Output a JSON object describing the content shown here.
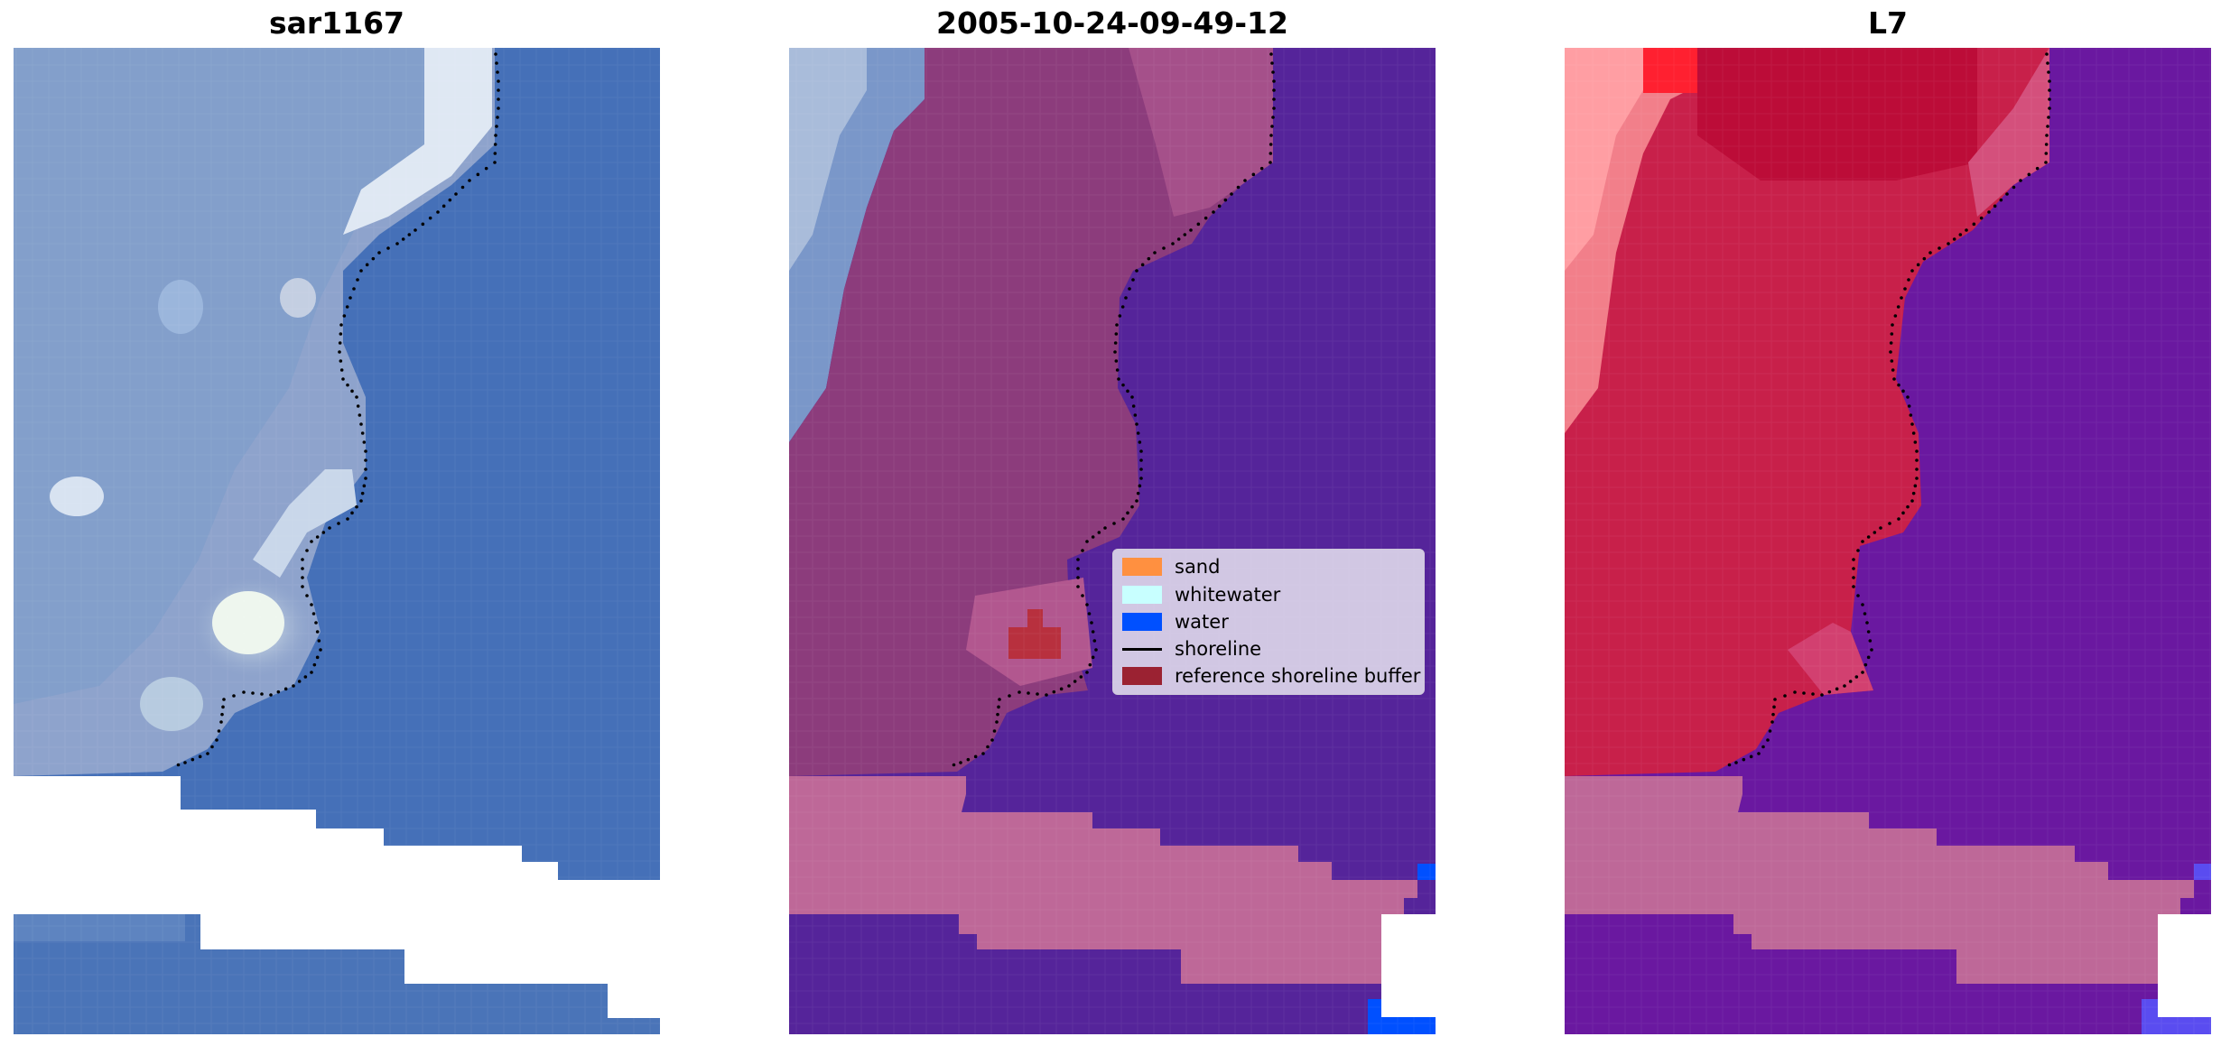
{
  "panels": [
    {
      "title": "sar1167"
    },
    {
      "title": "2005-10-24-09-49-12"
    },
    {
      "title": "L7"
    }
  ],
  "legend": {
    "items": [
      {
        "label": "sand",
        "color": "#ff9040"
      },
      {
        "label": "whitewater",
        "color": "#c8ffff"
      },
      {
        "label": "water",
        "color": "#0050ff"
      },
      {
        "label": "shoreline",
        "color": "#000000"
      },
      {
        "label": "reference shoreline buffer",
        "color": "#9b2232"
      }
    ]
  },
  "colors": {
    "rgb_water": "#4570b8",
    "rgb_land": "#8fa6cf",
    "class_land": "#8c3c7c",
    "class_water": "#55249a",
    "class_sand_buffer": "#be6898",
    "ndwi_land": "#c8204a",
    "ndwi_water": "#6a18a0",
    "nodata": "#ffffff"
  }
}
